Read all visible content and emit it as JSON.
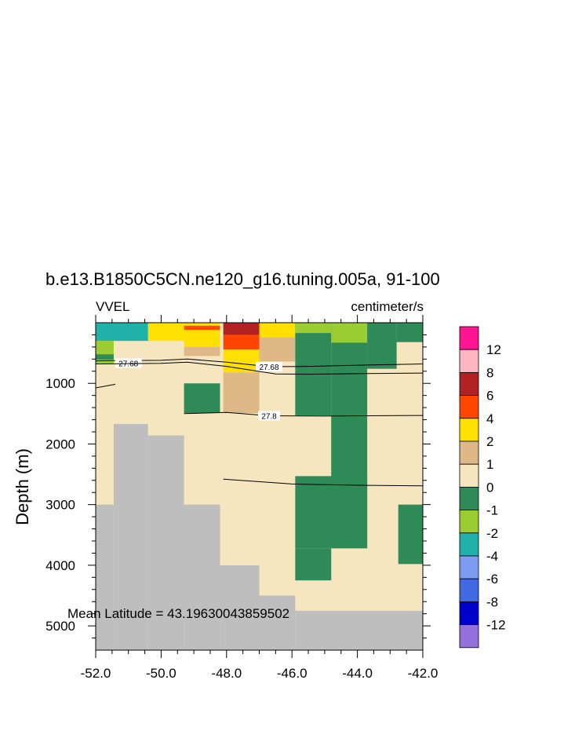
{
  "chart_data": {
    "type": "heatmap",
    "title": "b.e13.B1850C5CN.ne120_g16.tuning.005a, 91-100",
    "left_string": "VVEL",
    "right_string": "centimeter/s",
    "ylabel": "Depth (m)",
    "xlim": [
      -52.0,
      -42.0
    ],
    "ylim": [
      0,
      5400
    ],
    "y_reversed": true,
    "xticks": [
      -52.0,
      -50.0,
      -48.0,
      -46.0,
      -44.0,
      -42.0
    ],
    "xtick_labels": [
      "-52.0",
      "-50.0",
      "-48.0",
      "-46.0",
      "-44.0",
      "-42.0"
    ],
    "yticks": [
      1000,
      2000,
      3000,
      4000,
      5000
    ],
    "ytick_labels": [
      "1000",
      "2000",
      "3000",
      "4000",
      "5000"
    ],
    "annotation": "Mean Latitude = 43.19630043859502",
    "land_color": "#bebebe",
    "colorbar": {
      "labels": [
        "12",
        "8",
        "6",
        "4",
        "2",
        "1",
        "0",
        "-1",
        "-2",
        "-4",
        "-6",
        "-8",
        "-12"
      ],
      "colors": [
        "#ff1493",
        "#ffb6c1",
        "#b22222",
        "#ff4500",
        "#ffe000",
        "#deb887",
        "#f5e6c0",
        "#2e8b57",
        "#9acd32",
        "#20b2aa",
        "#7b9cf0",
        "#4169e1",
        "#0000cd",
        "#9370db"
      ]
    },
    "cells": [
      {
        "x": [
          -52.0,
          -42.0
        ],
        "y": [
          0,
          4750
        ],
        "color": "#f5e6c0"
      },
      {
        "x": [
          -52.0,
          -50.4
        ],
        "y": [
          0,
          300
        ],
        "color": "#20b2aa"
      },
      {
        "x": [
          -52.0,
          -51.45
        ],
        "y": [
          300,
          520
        ],
        "color": "#9acd32"
      },
      {
        "x": [
          -52.0,
          -51.45
        ],
        "y": [
          520,
          610
        ],
        "color": "#2e8b57"
      },
      {
        "x": [
          -52.0,
          -51.45
        ],
        "y": [
          610,
          680
        ],
        "color": "#9acd32"
      },
      {
        "x": [
          -50.4,
          -49.3
        ],
        "y": [
          0,
          300
        ],
        "color": "#ffe000"
      },
      {
        "x": [
          -49.3,
          -48.2
        ],
        "y": [
          0,
          400
        ],
        "color": "#ffe000"
      },
      {
        "x": [
          -49.3,
          -48.2
        ],
        "y": [
          50,
          120
        ],
        "color": "#ff4500"
      },
      {
        "x": [
          -49.3,
          -48.2
        ],
        "y": [
          400,
          550
        ],
        "color": "#deb887"
      },
      {
        "x": [
          -48.1,
          -47.0
        ],
        "y": [
          0,
          200
        ],
        "color": "#b22222"
      },
      {
        "x": [
          -48.1,
          -47.0
        ],
        "y": [
          200,
          440
        ],
        "color": "#ff4500"
      },
      {
        "x": [
          -48.1,
          -47.0
        ],
        "y": [
          440,
          820
        ],
        "color": "#ffe000"
      },
      {
        "x": [
          -48.1,
          -47.0
        ],
        "y": [
          820,
          1490
        ],
        "color": "#deb887"
      },
      {
        "x": [
          -47.0,
          -45.9
        ],
        "y": [
          0,
          240
        ],
        "color": "#ffe000"
      },
      {
        "x": [
          -47.0,
          -45.9
        ],
        "y": [
          240,
          640
        ],
        "color": "#deb887"
      },
      {
        "x": [
          -45.9,
          -44.8
        ],
        "y": [
          0,
          1530
        ],
        "color": "#2e8b57"
      },
      {
        "x": [
          -45.9,
          -44.8
        ],
        "y": [
          0,
          170
        ],
        "color": "#9acd32"
      },
      {
        "x": [
          -44.8,
          -43.7
        ],
        "y": [
          0,
          3720
        ],
        "color": "#2e8b57"
      },
      {
        "x": [
          -44.8,
          -43.7
        ],
        "y": [
          0,
          330
        ],
        "color": "#9acd32"
      },
      {
        "x": [
          -43.7,
          -42.8
        ],
        "y": [
          0,
          760
        ],
        "color": "#2e8b57"
      },
      {
        "x": [
          -42.8,
          -42.0
        ],
        "y": [
          0,
          320
        ],
        "color": "#2e8b57"
      },
      {
        "x": [
          -45.9,
          -43.7
        ],
        "y": [
          2530,
          3720
        ],
        "color": "#2e8b57"
      },
      {
        "x": [
          -45.9,
          -44.8
        ],
        "y": [
          3720,
          4250
        ],
        "color": "#2e8b57"
      },
      {
        "x": [
          -42.75,
          -42.0
        ],
        "y": [
          3000,
          3980
        ],
        "color": "#2e8b57"
      },
      {
        "x": [
          -49.3,
          -48.2
        ],
        "y": [
          1000,
          1490
        ],
        "color": "#2e8b57"
      },
      {
        "x": [
          -52.0,
          -51.45
        ],
        "y": [
          3000,
          5400
        ],
        "color": "#bebebe"
      },
      {
        "x": [
          -51.45,
          -50.4
        ],
        "y": [
          1670,
          5400
        ],
        "color": "#bebebe"
      },
      {
        "x": [
          -50.4,
          -49.3
        ],
        "y": [
          1860,
          5400
        ],
        "color": "#bebebe"
      },
      {
        "x": [
          -49.3,
          -48.2
        ],
        "y": [
          3000,
          5400
        ],
        "color": "#bebebe"
      },
      {
        "x": [
          -48.2,
          -47.0
        ],
        "y": [
          4000,
          5400
        ],
        "color": "#bebebe"
      },
      {
        "x": [
          -47.0,
          -45.9
        ],
        "y": [
          4500,
          5400
        ],
        "color": "#bebebe"
      },
      {
        "x": [
          -45.9,
          -42.0
        ],
        "y": [
          4750,
          5400
        ],
        "color": "#bebebe"
      }
    ],
    "contours": [
      {
        "label": "27.68",
        "label_at": [
          -51.0,
          665
        ],
        "label2": "27.68",
        "label2_at": [
          -46.7,
          725
        ],
        "points": [
          [
            -52.0,
            630
          ],
          [
            -50.0,
            620
          ],
          [
            -49.2,
            600
          ],
          [
            -48.0,
            650
          ],
          [
            -46.7,
            725
          ],
          [
            -45.5,
            720
          ],
          [
            -44.0,
            700
          ],
          [
            -42.0,
            680
          ]
        ]
      },
      {
        "points": [
          [
            -52.0,
            680
          ],
          [
            -50.0,
            670
          ],
          [
            -49.2,
            650
          ],
          [
            -48.0,
            720
          ],
          [
            -46.5,
            845
          ],
          [
            -45.5,
            850
          ],
          [
            -44.0,
            840
          ],
          [
            -42.0,
            830
          ]
        ]
      },
      {
        "points": [
          [
            -52.0,
            1075
          ],
          [
            -51.4,
            1015
          ]
        ]
      },
      {
        "label": "27.8",
        "label_at": [
          -46.7,
          1535
        ],
        "points": [
          [
            -49.3,
            1500
          ],
          [
            -48.0,
            1480
          ],
          [
            -46.7,
            1535
          ],
          [
            -45.0,
            1540
          ],
          [
            -42.0,
            1530
          ]
        ]
      },
      {
        "points": [
          [
            -48.1,
            2580
          ],
          [
            -46.0,
            2660
          ],
          [
            -44.0,
            2680
          ],
          [
            -42.0,
            2690
          ]
        ]
      }
    ]
  }
}
